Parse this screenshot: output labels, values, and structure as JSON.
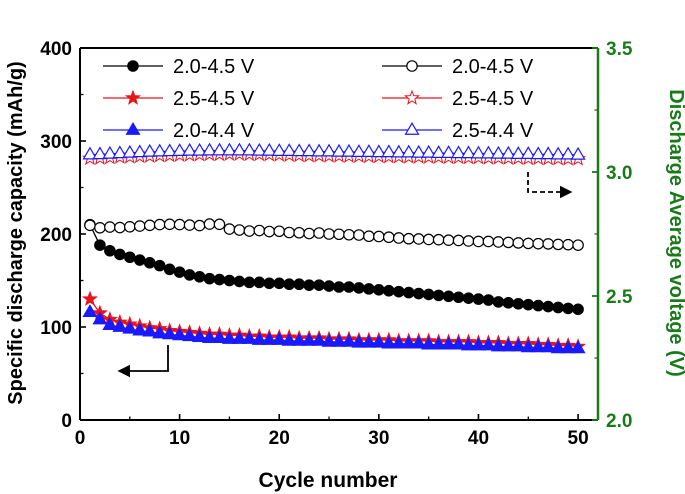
{
  "chart_data": {
    "type": "line",
    "xlabel": "Cycle number",
    "ylabel": "Specific discharge capacity (mAh/g)",
    "y2label": "Discharge Average voltage (V)",
    "xlim": [
      0,
      52
    ],
    "ylim": [
      0,
      400
    ],
    "y2lim": [
      2.0,
      3.5
    ],
    "x_ticks": [
      "0",
      "10",
      "20",
      "30",
      "40",
      "50"
    ],
    "y_ticks": [
      "0",
      "100",
      "200",
      "300",
      "400"
    ],
    "y2_ticks": [
      "2.0",
      "2.5",
      "3.0",
      "3.5"
    ],
    "colors": {
      "black": "#000000",
      "red": "#e8151b",
      "blue": "#1a1aff",
      "axis_right": "#1a7a1a"
    },
    "legend_position": "top",
    "annotations": [
      {
        "direction": "left",
        "axis": "left",
        "label": "arrow pointing to capacity axis"
      },
      {
        "direction": "right",
        "axis": "right",
        "label": "arrow pointing to voltage axis"
      }
    ],
    "series": [
      {
        "name": "2.0-4.5 V",
        "axis": "left",
        "marker": "circle",
        "filled": true,
        "color": "#000000",
        "x": [
          1,
          2,
          3,
          4,
          5,
          6,
          7,
          8,
          9,
          10,
          11,
          12,
          13,
          14,
          15,
          16,
          17,
          18,
          19,
          20,
          21,
          22,
          23,
          24,
          25,
          26,
          27,
          28,
          29,
          30,
          31,
          32,
          33,
          34,
          35,
          36,
          37,
          38,
          39,
          40,
          41,
          42,
          43,
          44,
          45,
          46,
          47,
          48,
          49,
          50
        ],
        "values": [
          210,
          188,
          182,
          178,
          175,
          172,
          169,
          166,
          162,
          159,
          156,
          154,
          152,
          151,
          150,
          149,
          148,
          148,
          147,
          147,
          146,
          146,
          145,
          145,
          144,
          143,
          143,
          142,
          141,
          140,
          139,
          138,
          137,
          136,
          135,
          134,
          133,
          132,
          131,
          130,
          129,
          127,
          126,
          125,
          124,
          123,
          122,
          121,
          120,
          119
        ]
      },
      {
        "name": "2.0-4.5 V",
        "axis": "right",
        "marker": "circle",
        "filled": false,
        "color": "#000000",
        "x": [
          1,
          2,
          3,
          4,
          5,
          6,
          7,
          8,
          9,
          10,
          11,
          12,
          13,
          14,
          15,
          16,
          17,
          18,
          19,
          20,
          21,
          22,
          23,
          24,
          25,
          26,
          27,
          28,
          29,
          30,
          31,
          32,
          33,
          34,
          35,
          36,
          37,
          38,
          39,
          40,
          41,
          42,
          43,
          44,
          45,
          46,
          47,
          48,
          49,
          50
        ],
        "values": [
          2.785,
          2.775,
          2.778,
          2.776,
          2.779,
          2.782,
          2.785,
          2.788,
          2.789,
          2.788,
          2.786,
          2.784,
          2.79,
          2.789,
          2.77,
          2.766,
          2.762,
          2.764,
          2.76,
          2.761,
          2.756,
          2.755,
          2.752,
          2.754,
          2.75,
          2.749,
          2.747,
          2.746,
          2.741,
          2.74,
          2.737,
          2.734,
          2.731,
          2.73,
          2.728,
          2.727,
          2.725,
          2.724,
          2.722,
          2.72,
          2.72,
          2.718,
          2.716,
          2.714,
          2.712,
          2.711,
          2.71,
          2.708,
          2.707,
          2.705
        ]
      },
      {
        "name": "2.5-4.5 V",
        "axis": "left",
        "marker": "star",
        "filled": true,
        "color": "#e8151b",
        "x": [
          1,
          2,
          3,
          4,
          5,
          6,
          7,
          8,
          9,
          10,
          11,
          12,
          13,
          14,
          15,
          16,
          17,
          18,
          19,
          20,
          21,
          22,
          23,
          24,
          25,
          26,
          27,
          28,
          29,
          30,
          31,
          32,
          33,
          34,
          35,
          36,
          37,
          38,
          39,
          40,
          41,
          42,
          43,
          44,
          45,
          46,
          47,
          48,
          49,
          50
        ],
        "values": [
          130,
          115,
          108,
          105,
          103,
          101,
          99,
          98,
          96,
          95,
          94,
          93,
          92,
          92,
          91,
          91,
          90,
          90,
          89,
          89,
          89,
          88,
          88,
          88,
          87,
          87,
          87,
          86,
          86,
          86,
          86,
          85,
          85,
          85,
          85,
          84,
          84,
          84,
          84,
          83,
          83,
          83,
          82,
          82,
          82,
          81,
          81,
          80,
          80,
          79
        ]
      },
      {
        "name": "2.5-4.5 V",
        "axis": "right",
        "marker": "star",
        "filled": false,
        "color": "#e8151b",
        "x": [
          1,
          2,
          3,
          4,
          5,
          6,
          7,
          8,
          9,
          10,
          11,
          12,
          13,
          14,
          15,
          16,
          17,
          18,
          19,
          20,
          21,
          22,
          23,
          24,
          25,
          26,
          27,
          28,
          29,
          30,
          31,
          32,
          33,
          34,
          35,
          36,
          37,
          38,
          39,
          40,
          41,
          42,
          43,
          44,
          45,
          46,
          47,
          48,
          49,
          50
        ],
        "values": [
          3.055,
          3.056,
          3.058,
          3.06,
          3.061,
          3.063,
          3.064,
          3.066,
          3.067,
          3.068,
          3.069,
          3.07,
          3.071,
          3.071,
          3.072,
          3.072,
          3.071,
          3.071,
          3.07,
          3.069,
          3.068,
          3.067,
          3.066,
          3.066,
          3.065,
          3.065,
          3.064,
          3.064,
          3.063,
          3.063,
          3.062,
          3.062,
          3.061,
          3.061,
          3.06,
          3.06,
          3.059,
          3.059,
          3.058,
          3.058,
          3.057,
          3.057,
          3.056,
          3.056,
          3.055,
          3.055,
          3.054,
          3.054,
          3.053,
          3.053
        ]
      },
      {
        "name": "2.0-4.4 V",
        "axis": "left",
        "marker": "triangle",
        "filled": true,
        "color": "#1a1aff",
        "x": [
          1,
          2,
          3,
          4,
          5,
          6,
          7,
          8,
          9,
          10,
          11,
          12,
          13,
          14,
          15,
          16,
          17,
          18,
          19,
          20,
          21,
          22,
          23,
          24,
          25,
          26,
          27,
          28,
          29,
          30,
          31,
          32,
          33,
          34,
          35,
          36,
          37,
          38,
          39,
          40,
          41,
          42,
          43,
          44,
          45,
          46,
          47,
          48,
          49,
          50
        ],
        "values": [
          116,
          108,
          102,
          100,
          98,
          96,
          95,
          93,
          92,
          91,
          90,
          89,
          88,
          88,
          87,
          87,
          87,
          86,
          86,
          86,
          85,
          85,
          85,
          85,
          84,
          84,
          84,
          83,
          83,
          83,
          82,
          82,
          82,
          82,
          81,
          81,
          81,
          81,
          80,
          80,
          80,
          79,
          79,
          79,
          78,
          78,
          78,
          77,
          77,
          77
        ]
      },
      {
        "name": "2.5-4.4 V",
        "axis": "right",
        "marker": "triangle",
        "filled": false,
        "color": "#1a1aff",
        "x": [
          1,
          2,
          3,
          4,
          5,
          6,
          7,
          8,
          9,
          10,
          11,
          12,
          13,
          14,
          15,
          16,
          17,
          18,
          19,
          20,
          21,
          22,
          23,
          24,
          25,
          26,
          27,
          28,
          29,
          30,
          31,
          32,
          33,
          34,
          35,
          36,
          37,
          38,
          39,
          40,
          41,
          42,
          43,
          44,
          45,
          46,
          47,
          48,
          49,
          50
        ],
        "values": [
          3.07,
          3.071,
          3.073,
          3.075,
          3.077,
          3.079,
          3.081,
          3.082,
          3.083,
          3.084,
          3.085,
          3.085,
          3.086,
          3.086,
          3.086,
          3.086,
          3.086,
          3.085,
          3.085,
          3.084,
          3.084,
          3.083,
          3.083,
          3.082,
          3.082,
          3.081,
          3.081,
          3.08,
          3.08,
          3.079,
          3.079,
          3.078,
          3.078,
          3.077,
          3.077,
          3.076,
          3.076,
          3.075,
          3.075,
          3.074,
          3.074,
          3.073,
          3.073,
          3.072,
          3.072,
          3.071,
          3.071,
          3.07,
          3.07,
          3.069
        ]
      }
    ]
  }
}
